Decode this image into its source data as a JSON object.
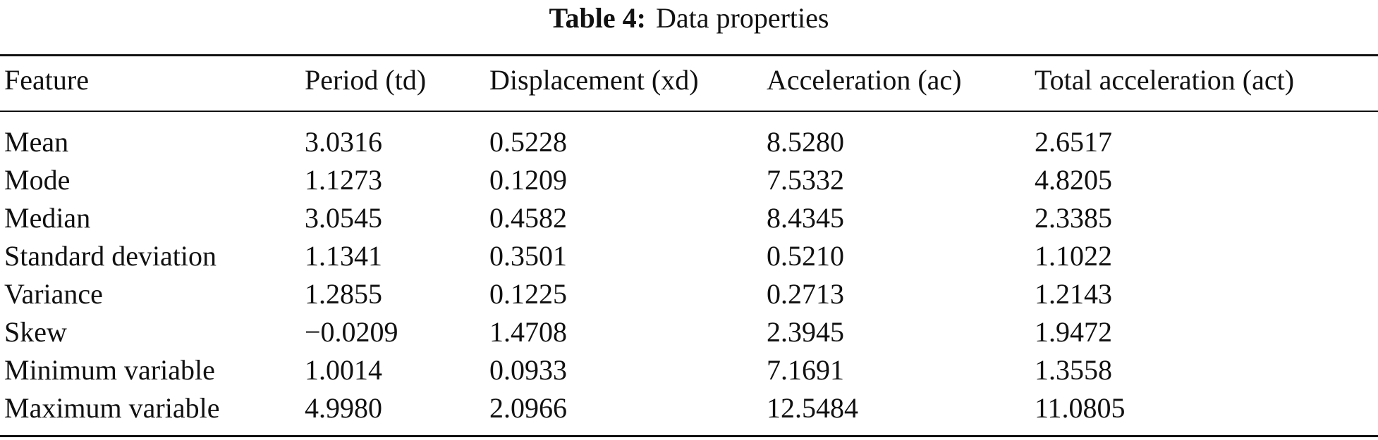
{
  "caption": {
    "label": "Table 4:",
    "title": "Data properties"
  },
  "table": {
    "header": [
      "Feature",
      "Period (td)",
      "Displacement (xd)",
      "Acceleration (ac)",
      "Total acceleration (act)"
    ],
    "rows": [
      [
        "Mean",
        "3.0316",
        "0.5228",
        "8.5280",
        "2.6517"
      ],
      [
        "Mode",
        "1.1273",
        "0.1209",
        "7.5332",
        "4.8205"
      ],
      [
        "Median",
        "3.0545",
        "0.4582",
        "8.4345",
        "2.3385"
      ],
      [
        "Standard deviation",
        "1.1341",
        "0.3501",
        "0.5210",
        "1.1022"
      ],
      [
        "Variance",
        "1.2855",
        "0.1225",
        "0.2713",
        "1.2143"
      ],
      [
        "Skew",
        "−0.0209",
        "1.4708",
        "2.3945",
        "1.9472"
      ],
      [
        "Minimum variable",
        "1.0014",
        "0.0933",
        "7.1691",
        "1.3558"
      ],
      [
        "Maximum variable",
        "4.9980",
        "2.0966",
        "12.5484",
        "11.0805"
      ]
    ]
  }
}
